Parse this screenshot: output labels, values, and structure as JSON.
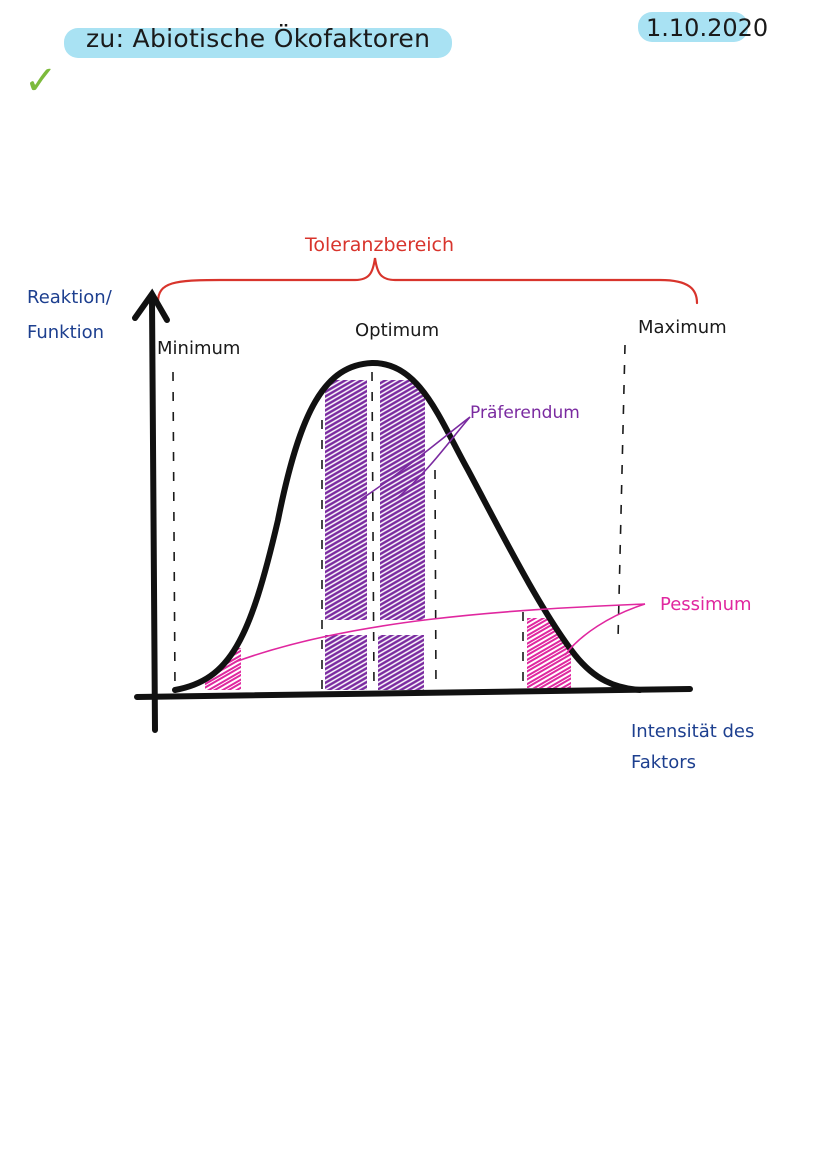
{
  "header": {
    "title": "zu: Abiotische Ökofaktoren",
    "date": "1.10.2020"
  },
  "colors": {
    "highlight": "#a9e2f3",
    "tolerance": "#d8342c",
    "axis_labels": "#1d3f8f",
    "praeferendum": "#7a2aa0",
    "pessimum": "#e0279f",
    "check": "#7dbb3c"
  },
  "check_icon": "checkmark-icon",
  "diagram": {
    "tolerance_label": "Toleranzbereich",
    "y_axis_label_line1": "Reaktion/",
    "y_axis_label_line2": "Funktion",
    "x_axis_label_line1": "Intensität des",
    "x_axis_label_line2": "Faktors",
    "minimum_label": "Minimum",
    "optimum_label": "Optimum",
    "maximum_label": "Maximum",
    "praeferendum_label": "Präferendum",
    "pessimum_label": "Pessimum"
  }
}
